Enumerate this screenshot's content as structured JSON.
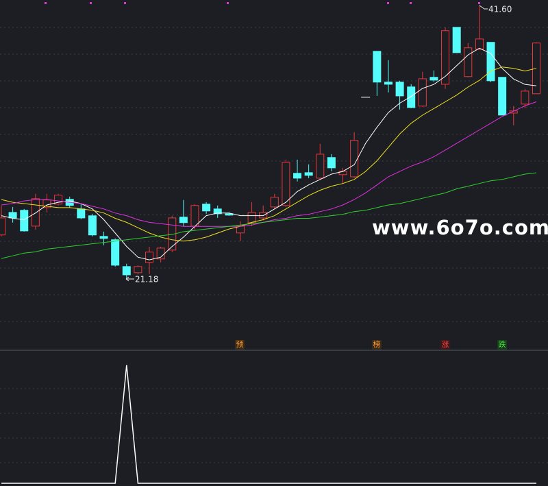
{
  "chart_data": [
    {
      "type": "candlestick",
      "categories": [
        null,
        null,
        null,
        null,
        null,
        null,
        null,
        null,
        null,
        null,
        null,
        null,
        null,
        null,
        null,
        null,
        null,
        null,
        null,
        null,
        null,
        null,
        null,
        null,
        null,
        null,
        null,
        null,
        null,
        null,
        null,
        null,
        null,
        null,
        null,
        null,
        null,
        null,
        null,
        null,
        null,
        null,
        null,
        null,
        null,
        null,
        null,
        null
      ],
      "open": [
        24.46,
        26.14,
        26.3,
        25.12,
        26.5,
        26.76,
        27.12,
        26.4,
        25.89,
        24.35,
        24.1,
        22.1,
        21.64,
        22.41,
        22.67,
        23.33,
        25.79,
        25.12,
        26.76,
        26.4,
        26.04,
        24.61,
        25.38,
        25.73,
        26.55,
        26.66,
        29.06,
        29.11,
        28.7,
        30.24,
        28.96,
        28.8,
        34.74,
        38.17,
        35.87,
        35.87,
        35.51,
        34.08,
        36.23,
        35.71,
        39.96,
        36.28,
        38.32,
        38.84,
        36.23,
        33.56,
        34.23,
        35.0
      ],
      "high": [
        26.66,
        26.55,
        26.4,
        27.53,
        27.53,
        27.53,
        27.32,
        26.76,
        26.04,
        24.71,
        24.2,
        22.31,
        22.2,
        23.58,
        23.58,
        25.89,
        27.07,
        26.76,
        26.91,
        26.66,
        26.14,
        25.48,
        26.91,
        26.66,
        27.53,
        30.08,
        30.08,
        29.73,
        31.26,
        30.49,
        29.47,
        32.13,
        34.74,
        38.17,
        37.51,
        35.97,
        35.71,
        36.64,
        36.74,
        39.96,
        39.96,
        38.79,
        41.6,
        38.84,
        36.23,
        34.08,
        35.36,
        38.84
      ],
      "low": [
        24.35,
        25.38,
        24.71,
        24.86,
        26.14,
        26.66,
        26.5,
        25.63,
        24.35,
        23.69,
        22.1,
        21.18,
        21.54,
        21.54,
        22.41,
        23.18,
        25.12,
        24.86,
        26.04,
        25.73,
        25.89,
        23.99,
        25.12,
        25.53,
        26.4,
        26.55,
        28.45,
        28.7,
        28.6,
        29.21,
        28.29,
        28.7,
        34.74,
        34.84,
        35.1,
        33.82,
        33.92,
        34.03,
        35.87,
        35.36,
        38.07,
        36.23,
        38.32,
        35.87,
        33.41,
        32.64,
        33.92,
        35.0
      ],
      "close": [
        25.73,
        25.73,
        24.76,
        27.17,
        27.07,
        27.43,
        26.66,
        25.73,
        24.46,
        24.2,
        22.2,
        21.48,
        22.1,
        23.18,
        23.48,
        25.73,
        25.38,
        26.66,
        26.25,
        26.04,
        25.94,
        25.12,
        26.14,
        26.14,
        27.27,
        29.88,
        28.7,
        28.91,
        30.49,
        29.47,
        29.21,
        31.52,
        34.74,
        35.87,
        35.71,
        34.84,
        33.97,
        36.12,
        36.02,
        39.71,
        38.07,
        38.43,
        39.09,
        35.97,
        33.41,
        33.72,
        35.2,
        38.79
      ],
      "up_color": "#e8393b",
      "down_color": "#54fcfc",
      "flat_color": "#dddddd",
      "series": [
        {
          "color": "#ffffff",
          "values": [
            25.9,
            25.7,
            25.6,
            26.1,
            26.7,
            26.9,
            27.0,
            26.8,
            26.4,
            25.6,
            24.6,
            23.6,
            22.8,
            22.6,
            22.8,
            23.6,
            24.3,
            25.1,
            25.9,
            26.1,
            26.1,
            25.9,
            25.9,
            25.9,
            26.4,
            26.9,
            27.7,
            28.2,
            28.6,
            29.0,
            29.2,
            29.7,
            31.3,
            32.5,
            33.6,
            34.3,
            34.8,
            35.4,
            35.7,
            36.3,
            37.1,
            37.9,
            38.4,
            38.0,
            36.9,
            36.1,
            35.7,
            35.6
          ]
        },
        {
          "color": "#f0e020",
          "values": [
            27.1,
            26.9,
            26.8,
            26.7,
            26.6,
            26.5,
            26.5,
            26.4,
            26.3,
            26.1,
            25.7,
            25.4,
            25.0,
            24.6,
            24.3,
            24.1,
            24.0,
            24.1,
            24.3,
            24.6,
            24.9,
            25.1,
            25.4,
            25.6,
            25.9,
            26.4,
            26.9,
            27.4,
            27.8,
            28.1,
            28.3,
            28.6,
            29.2,
            30.0,
            31.0,
            32.0,
            32.8,
            33.4,
            33.9,
            34.4,
            34.9,
            35.5,
            36.0,
            36.7,
            37.0,
            36.9,
            36.7,
            36.9
          ]
        },
        {
          "color": "#e030e0",
          "values": [
            26.7,
            26.8,
            27.0,
            27.1,
            27.1,
            27.0,
            26.9,
            26.8,
            26.6,
            26.4,
            26.1,
            25.9,
            25.6,
            25.4,
            25.3,
            25.2,
            25.1,
            25.1,
            25.1,
            25.1,
            25.1,
            25.1,
            25.2,
            25.4,
            25.6,
            25.7,
            25.9,
            26.0,
            26.2,
            26.4,
            26.7,
            27.1,
            27.6,
            28.2,
            28.8,
            29.2,
            29.6,
            29.9,
            30.3,
            30.8,
            31.3,
            31.8,
            32.3,
            32.8,
            33.3,
            33.7,
            34.1,
            34.4
          ]
        },
        {
          "color": "#30d030",
          "values": [
            22.7,
            22.9,
            23.1,
            23.2,
            23.4,
            23.5,
            23.6,
            23.7,
            23.8,
            23.9,
            24.0,
            24.1,
            24.2,
            24.3,
            24.4,
            24.5,
            24.7,
            24.8,
            24.9,
            25.0,
            25.1,
            25.2,
            25.3,
            25.4,
            25.5,
            25.6,
            25.7,
            25.7,
            25.8,
            25.9,
            26.0,
            26.2,
            26.3,
            26.5,
            26.7,
            26.8,
            27.0,
            27.2,
            27.4,
            27.6,
            27.9,
            28.1,
            28.3,
            28.5,
            28.6,
            28.8,
            29.0,
            29.1
          ]
        }
      ],
      "ylim": [
        15.9,
        42.0
      ],
      "price_labels": [
        "41.60",
        "21.18"
      ],
      "signals": [
        "预",
        "榜",
        "涨",
        "跌"
      ],
      "watermark": "www.6o7o.com"
    },
    {
      "type": "line",
      "color": "#ffffff",
      "values": [
        0,
        0,
        0,
        0,
        0,
        0,
        0,
        0,
        0,
        0,
        0,
        1,
        0,
        0,
        0,
        0,
        0,
        0,
        0,
        0,
        0,
        0,
        0,
        0,
        0,
        0,
        0,
        0,
        0,
        0,
        0,
        0,
        0,
        0,
        0,
        0,
        0,
        0,
        0,
        0,
        0,
        0,
        0,
        0,
        0,
        0,
        0,
        0
      ],
      "ylim": [
        0,
        1.12
      ]
    }
  ]
}
